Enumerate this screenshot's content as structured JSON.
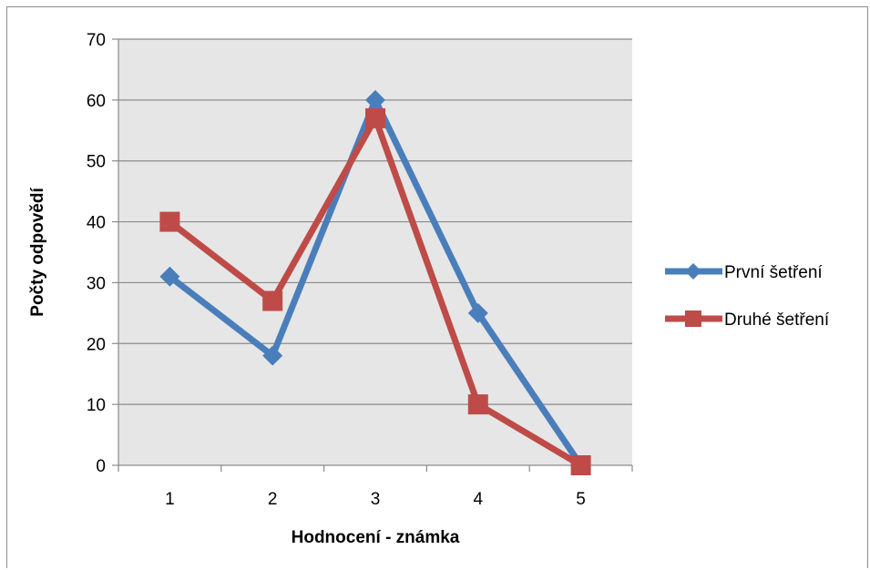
{
  "chart_data": {
    "type": "line",
    "categories": [
      "1",
      "2",
      "3",
      "4",
      "5"
    ],
    "series": [
      {
        "name": "První šetření",
        "values": [
          31,
          18,
          60,
          25,
          0
        ],
        "color": "#4a7ebb",
        "marker": "diamond"
      },
      {
        "name": "Druhé šetření",
        "values": [
          40,
          27,
          57,
          10,
          0
        ],
        "color": "#be4b48",
        "marker": "square"
      }
    ],
    "xlabel": "Hodnocení - známka",
    "ylabel": "Počty odpovědí",
    "ylim": [
      0,
      70
    ],
    "yticks": [
      0,
      10,
      20,
      30,
      40,
      50,
      60,
      70
    ],
    "grid": true,
    "plot_background": "#e6e6e6",
    "legend_position": "right"
  }
}
